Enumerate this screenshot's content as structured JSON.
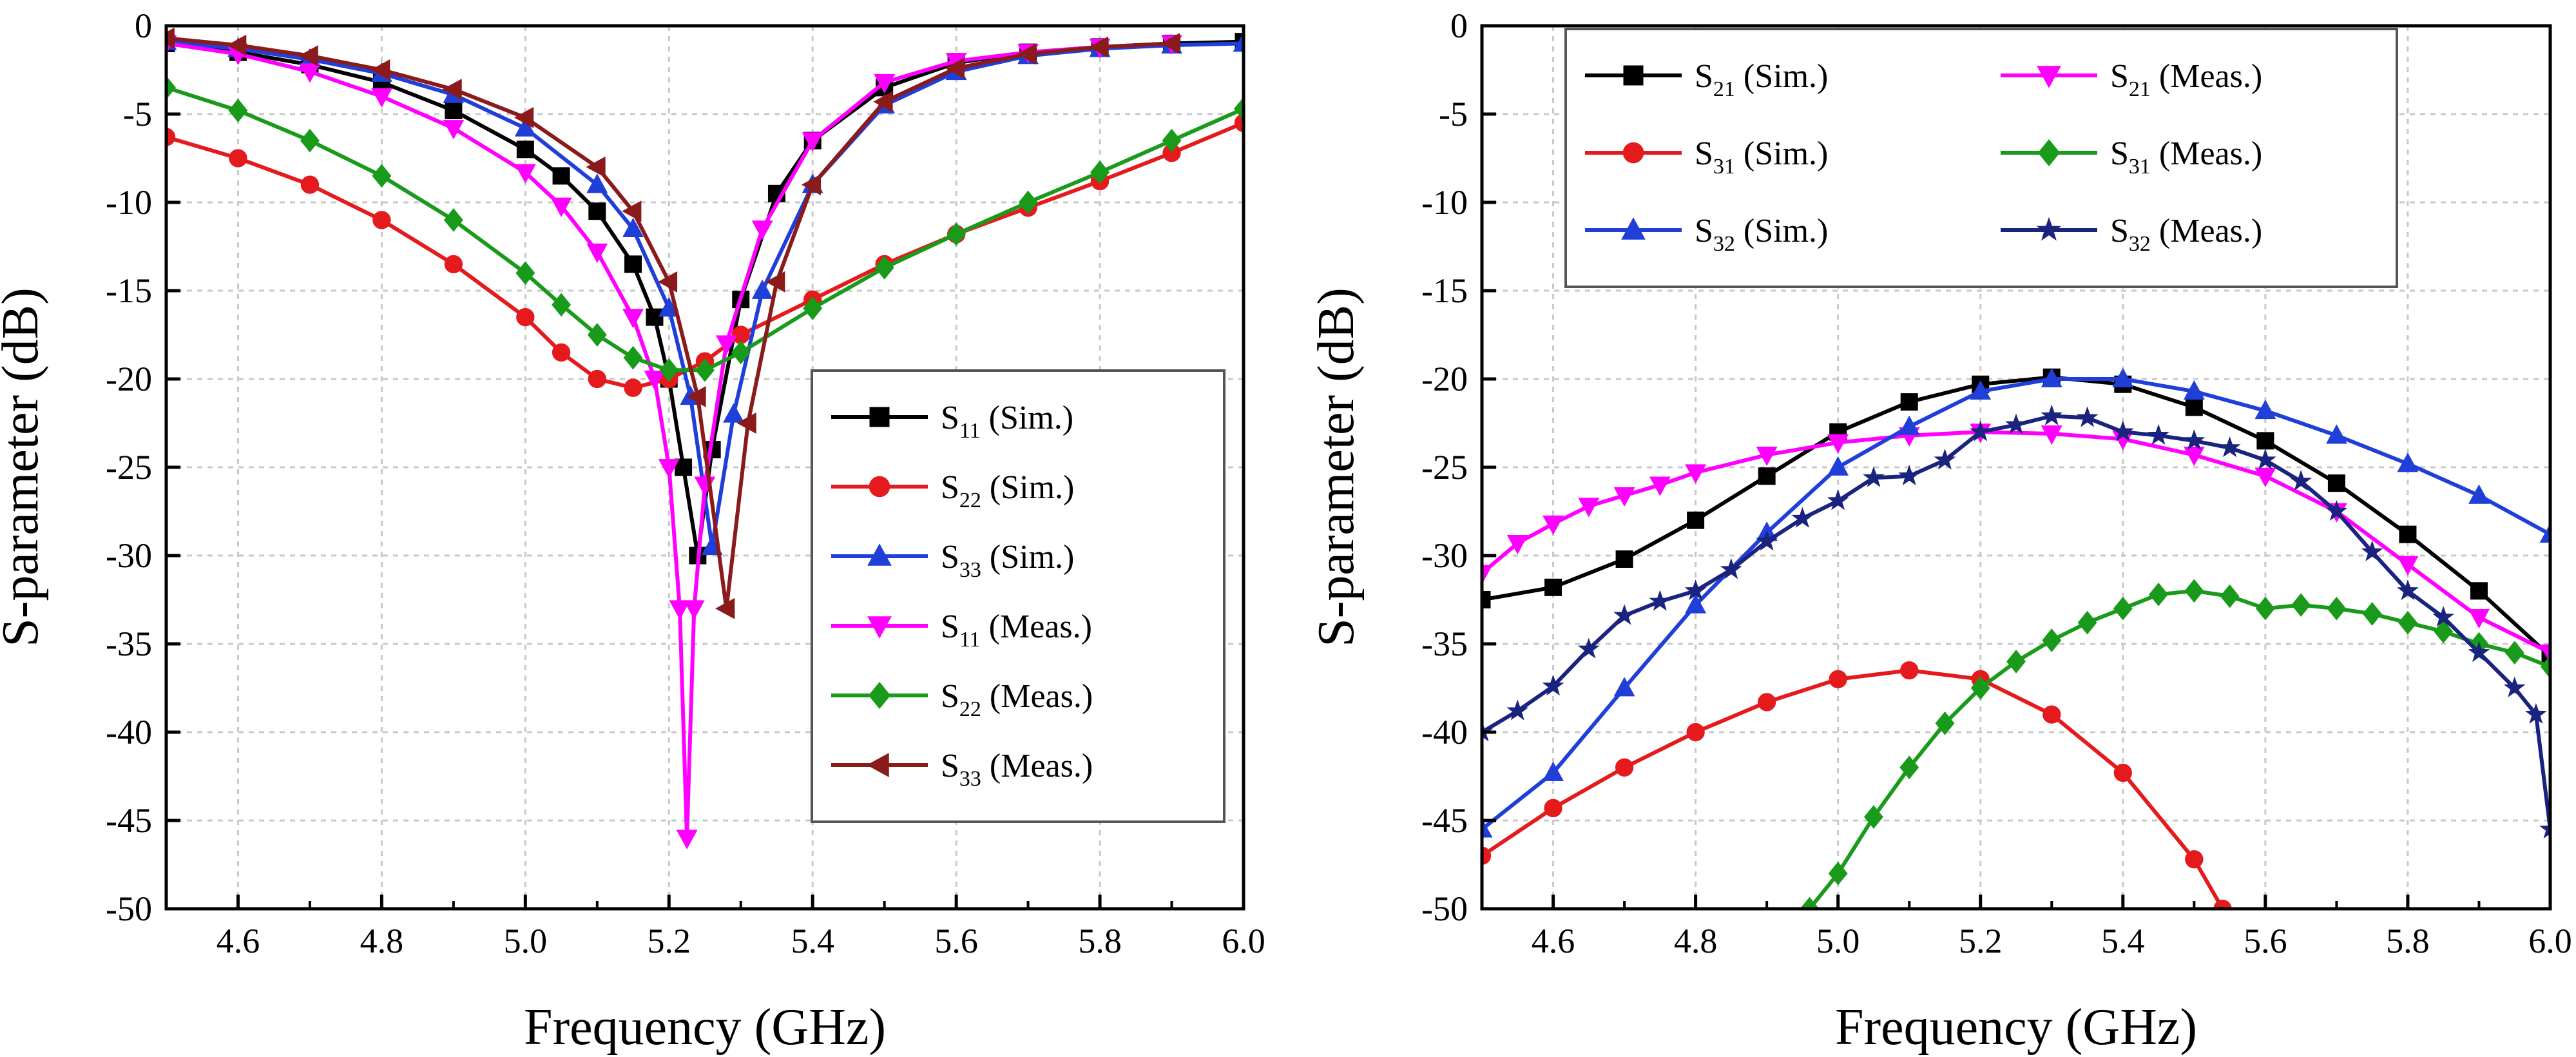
{
  "chart_data": [
    {
      "type": "line",
      "title": "",
      "xlabel": "Frequency (GHz)",
      "ylabel": "S-parameter (dB)",
      "xlim": [
        4.5,
        6.0
      ],
      "ylim": [
        -50,
        0
      ],
      "xticks": [
        4.6,
        4.8,
        5.0,
        5.2,
        5.4,
        5.6,
        5.8,
        6.0
      ],
      "xtick_labels": [
        "4.6",
        "4.8",
        "5.0",
        "5.2",
        "5.4",
        "5.6",
        "5.8",
        "6.0"
      ],
      "yticks": [
        0,
        -5,
        -10,
        -15,
        -20,
        -25,
        -30,
        -35,
        -40,
        -45,
        -50
      ],
      "ytick_labels": [
        "0",
        "-5",
        "-10",
        "-15",
        "-20",
        "-25",
        "-30",
        "-35",
        "-40",
        "-45",
        "-50"
      ],
      "grid": true,
      "legend_position": "bottom-right",
      "series": [
        {
          "name": "S11 (Sim.)",
          "base": "S",
          "sub": "11",
          "note": " (Sim.)",
          "color": "#000000",
          "marker": "square",
          "x": [
            4.5,
            4.6,
            4.7,
            4.8,
            4.9,
            5.0,
            5.05,
            5.1,
            5.15,
            5.18,
            5.2,
            5.22,
            5.24,
            5.26,
            5.3,
            5.35,
            5.4,
            5.5,
            5.6,
            5.7,
            5.8,
            5.9,
            6.0
          ],
          "y": [
            -1.0,
            -1.5,
            -2.2,
            -3.2,
            -4.8,
            -7.0,
            -8.5,
            -10.5,
            -13.5,
            -16.5,
            -20.0,
            -25.0,
            -30.0,
            -24.0,
            -15.5,
            -9.5,
            -6.5,
            -3.5,
            -2.1,
            -1.5,
            -1.2,
            -1.0,
            -0.9
          ]
        },
        {
          "name": "S22 (Sim.)",
          "base": "S",
          "sub": "22",
          "note": " (Sim.)",
          "color": "#e41a1c",
          "marker": "circle",
          "x": [
            4.5,
            4.6,
            4.7,
            4.8,
            4.9,
            5.0,
            5.05,
            5.1,
            5.15,
            5.2,
            5.25,
            5.3,
            5.4,
            5.5,
            5.6,
            5.7,
            5.8,
            5.9,
            6.0
          ],
          "y": [
            -6.3,
            -7.5,
            -9.0,
            -11.0,
            -13.5,
            -16.5,
            -18.5,
            -20.0,
            -20.5,
            -20.0,
            -19.0,
            -17.5,
            -15.5,
            -13.5,
            -11.8,
            -10.3,
            -8.8,
            -7.2,
            -5.5
          ]
        },
        {
          "name": "S33 (Sim.)",
          "base": "S",
          "sub": "33",
          "note": " (Sim.)",
          "color": "#1f3fd8",
          "marker": "triangle-up",
          "x": [
            4.5,
            4.6,
            4.7,
            4.8,
            4.9,
            5.0,
            5.1,
            5.15,
            5.2,
            5.23,
            5.26,
            5.29,
            5.33,
            5.4,
            5.5,
            5.6,
            5.7,
            5.8,
            5.9,
            6.0
          ],
          "y": [
            -0.9,
            -1.3,
            -1.9,
            -2.7,
            -3.9,
            -5.8,
            -9.0,
            -11.5,
            -16.0,
            -21.0,
            -29.5,
            -22.0,
            -15.0,
            -9.0,
            -4.5,
            -2.6,
            -1.7,
            -1.3,
            -1.1,
            -1.0
          ]
        },
        {
          "name": "S11 (Meas.)",
          "base": "S",
          "sub": "11",
          "note": " (Meas.)",
          "color": "#ff00ff",
          "marker": "triangle-down",
          "x": [
            4.5,
            4.6,
            4.7,
            4.8,
            4.9,
            5.0,
            5.05,
            5.1,
            5.15,
            5.18,
            5.2,
            5.215,
            5.225,
            5.235,
            5.25,
            5.28,
            5.33,
            5.4,
            5.5,
            5.6,
            5.7,
            5.8,
            5.9
          ],
          "y": [
            -1.0,
            -1.6,
            -2.6,
            -4.0,
            -5.8,
            -8.3,
            -10.2,
            -12.8,
            -16.5,
            -20.0,
            -25.0,
            -33.0,
            -46.0,
            -33.0,
            -26.0,
            -18.0,
            -11.5,
            -6.5,
            -3.2,
            -2.0,
            -1.5,
            -1.2,
            -1.0
          ]
        },
        {
          "name": "S22 (Meas.)",
          "base": "S",
          "sub": "22",
          "note": " (Meas.)",
          "color": "#1a9a1a",
          "marker": "diamond",
          "x": [
            4.5,
            4.6,
            4.7,
            4.8,
            4.9,
            5.0,
            5.05,
            5.1,
            5.15,
            5.2,
            5.25,
            5.3,
            5.4,
            5.5,
            5.6,
            5.7,
            5.8,
            5.9,
            6.0
          ],
          "y": [
            -3.5,
            -4.8,
            -6.5,
            -8.5,
            -11.0,
            -14.0,
            -15.8,
            -17.5,
            -18.8,
            -19.5,
            -19.5,
            -18.5,
            -16.0,
            -13.7,
            -11.8,
            -10.0,
            -8.3,
            -6.5,
            -4.7
          ]
        },
        {
          "name": "S33 (Meas.)",
          "base": "S",
          "sub": "33",
          "note": " (Meas.)",
          "color": "#8b1a1a",
          "marker": "triangle-left",
          "x": [
            4.5,
            4.6,
            4.7,
            4.8,
            4.9,
            5.0,
            5.1,
            5.15,
            5.2,
            5.24,
            5.28,
            5.31,
            5.35,
            5.4,
            5.5,
            5.6,
            5.7,
            5.8,
            5.9
          ],
          "y": [
            -0.7,
            -1.1,
            -1.7,
            -2.5,
            -3.6,
            -5.2,
            -8.0,
            -10.5,
            -14.5,
            -21.0,
            -33.0,
            -22.5,
            -14.5,
            -9.0,
            -4.3,
            -2.4,
            -1.6,
            -1.2,
            -1.0
          ]
        }
      ]
    },
    {
      "type": "line",
      "title": "",
      "xlabel": "Frequency (GHz)",
      "ylabel": "S-parameter (dB)",
      "xlim": [
        4.5,
        6.0
      ],
      "ylim": [
        -50,
        0
      ],
      "xticks": [
        4.6,
        4.8,
        5.0,
        5.2,
        5.4,
        5.6,
        5.8,
        6.0
      ],
      "xtick_labels": [
        "4.6",
        "4.8",
        "5.0",
        "5.2",
        "5.4",
        "5.6",
        "5.8",
        "6.0"
      ],
      "yticks": [
        0,
        -5,
        -10,
        -15,
        -20,
        -25,
        -30,
        -35,
        -40,
        -45,
        -50
      ],
      "ytick_labels": [
        "0",
        "-5",
        "-10",
        "-15",
        "-20",
        "-25",
        "-30",
        "-35",
        "-40",
        "-45",
        "-50"
      ],
      "grid": true,
      "legend_position": "top",
      "series": [
        {
          "name": "S21 (Sim.)",
          "base": "S",
          "sub": "21",
          "note": " (Sim.)",
          "color": "#000000",
          "marker": "square",
          "x": [
            4.5,
            4.6,
            4.7,
            4.8,
            4.9,
            5.0,
            5.1,
            5.2,
            5.3,
            5.4,
            5.5,
            5.6,
            5.7,
            5.8,
            5.9,
            6.0
          ],
          "y": [
            -32.5,
            -31.8,
            -30.2,
            -28.0,
            -25.5,
            -23.0,
            -21.3,
            -20.3,
            -19.9,
            -20.3,
            -21.6,
            -23.5,
            -25.9,
            -28.8,
            -32.0,
            -35.7
          ]
        },
        {
          "name": "S21 (Meas.)",
          "base": "S",
          "sub": "21",
          "note": " (Meas.)",
          "color": "#ff00ff",
          "marker": "triangle-down",
          "x": [
            4.5,
            4.55,
            4.6,
            4.65,
            4.7,
            4.75,
            4.8,
            4.9,
            5.0,
            5.1,
            5.2,
            5.3,
            5.4,
            5.5,
            5.6,
            5.7,
            5.8,
            5.9,
            6.0
          ],
          "y": [
            -31.0,
            -29.3,
            -28.2,
            -27.2,
            -26.6,
            -26.0,
            -25.3,
            -24.3,
            -23.6,
            -23.2,
            -23.0,
            -23.1,
            -23.4,
            -24.3,
            -25.5,
            -27.5,
            -30.5,
            -33.5,
            -35.5
          ]
        },
        {
          "name": "S31 (Sim.)",
          "base": "S",
          "sub": "31",
          "note": " (Sim.)",
          "color": "#e41a1c",
          "marker": "circle",
          "x": [
            4.5,
            4.6,
            4.7,
            4.8,
            4.9,
            5.0,
            5.1,
            5.2,
            5.3,
            5.4,
            5.5,
            5.54
          ],
          "y": [
            -47.0,
            -44.3,
            -42.0,
            -40.0,
            -38.3,
            -37.0,
            -36.5,
            -37.0,
            -39.0,
            -42.3,
            -47.2,
            -50.0
          ]
        },
        {
          "name": "S31 (Meas.)",
          "base": "S",
          "sub": "31",
          "note": " (Meas.)",
          "color": "#1a9a1a",
          "marker": "diamond",
          "x": [
            4.96,
            5.0,
            5.05,
            5.1,
            5.15,
            5.2,
            5.25,
            5.3,
            5.35,
            5.4,
            5.45,
            5.5,
            5.55,
            5.6,
            5.65,
            5.7,
            5.75,
            5.8,
            5.85,
            5.9,
            5.95,
            6.0
          ],
          "y": [
            -50.0,
            -48.0,
            -44.8,
            -42.0,
            -39.5,
            -37.5,
            -36.0,
            -34.8,
            -33.8,
            -33.0,
            -32.2,
            -32.0,
            -32.3,
            -33.0,
            -32.8,
            -33.0,
            -33.3,
            -33.8,
            -34.3,
            -35.0,
            -35.5,
            -36.3
          ]
        },
        {
          "name": "S32 (Sim.)",
          "base": "S",
          "sub": "32",
          "note": " (Sim.)",
          "color": "#1f3fd8",
          "marker": "triangle-up",
          "x": [
            4.5,
            4.6,
            4.7,
            4.8,
            4.9,
            5.0,
            5.1,
            5.2,
            5.3,
            5.4,
            5.5,
            5.6,
            5.7,
            5.8,
            5.9,
            6.0
          ],
          "y": [
            -45.5,
            -42.3,
            -37.5,
            -32.8,
            -28.7,
            -25.0,
            -22.7,
            -20.7,
            -20.0,
            -20.0,
            -20.7,
            -21.8,
            -23.2,
            -24.8,
            -26.6,
            -28.8
          ]
        },
        {
          "name": "S32 (Meas.)",
          "base": "S",
          "sub": "32",
          "note": " (Meas.)",
          "color": "#1a237e",
          "marker": "star",
          "x": [
            4.5,
            4.55,
            4.6,
            4.65,
            4.7,
            4.75,
            4.8,
            4.85,
            4.9,
            4.95,
            5.0,
            5.05,
            5.1,
            5.15,
            5.2,
            5.25,
            5.3,
            5.35,
            5.4,
            5.45,
            5.5,
            5.55,
            5.6,
            5.65,
            5.7,
            5.75,
            5.8,
            5.85,
            5.9,
            5.95,
            5.98,
            6.0
          ],
          "y": [
            -40.0,
            -38.8,
            -37.4,
            -35.3,
            -33.4,
            -32.6,
            -32.0,
            -30.8,
            -29.2,
            -27.9,
            -26.9,
            -25.6,
            -25.5,
            -24.6,
            -23.0,
            -22.6,
            -22.1,
            -22.2,
            -23.0,
            -23.2,
            -23.5,
            -23.9,
            -24.6,
            -25.8,
            -27.5,
            -29.8,
            -32.0,
            -33.5,
            -35.5,
            -37.5,
            -39.0,
            -45.5
          ]
        }
      ]
    }
  ]
}
